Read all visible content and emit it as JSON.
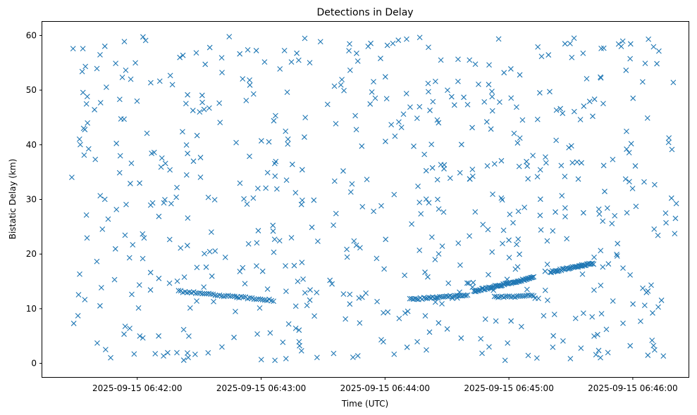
{
  "chart_data": {
    "type": "scatter",
    "title": "Detections in Delay",
    "xlabel": "Time (UTC)",
    "ylabel": "Bistatic Delay (km)",
    "marker": "x",
    "color": "#1f77b4",
    "grid": false,
    "legend": "none",
    "xlim": [
      "2025-09-15 06:41:14",
      "2025-09-15 06:46:27"
    ],
    "ylim": [
      -2.5,
      62.5
    ],
    "x_ticks": [
      "2025-09-15 06:42:00",
      "2025-09-15 06:43:00",
      "2025-09-15 06:44:00",
      "2025-09-15 06:45:00",
      "2025-09-15 06:46:00"
    ],
    "y_ticks": [
      0,
      10,
      20,
      30,
      40,
      50,
      60
    ],
    "tracks": [
      {
        "x_start": "2025-09-15 06:42:20",
        "y_start": 13.2,
        "x_end": "2025-09-15 06:43:06",
        "y_end": 11.5,
        "count": 45
      },
      {
        "x_start": "2025-09-15 06:44:12",
        "y_start": 11.7,
        "x_end": "2025-09-15 06:44:40",
        "y_end": 12.5,
        "count": 34
      },
      {
        "x_start": "2025-09-15 06:44:43",
        "y_start": 13.2,
        "x_end": "2025-09-15 06:45:12",
        "y_end": 15.7,
        "count": 60
      },
      {
        "x_start": "2025-09-15 06:45:20",
        "y_start": 16.7,
        "x_end": "2025-09-15 06:45:41",
        "y_end": 18.3,
        "count": 40
      },
      {
        "x_start": "2025-09-15 06:44:53",
        "y_start": 12.1,
        "x_end": "2025-09-15 06:45:12",
        "y_end": 12.4,
        "count": 22
      }
    ],
    "clutter": {
      "x_range": [
        "2025-09-15 06:41:28",
        "2025-09-15 06:46:24"
      ],
      "y_range": [
        0.5,
        59.8
      ],
      "count": 620
    }
  }
}
